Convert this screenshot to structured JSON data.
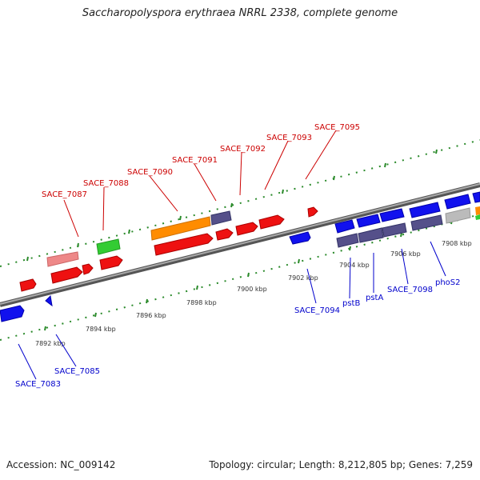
{
  "title": "Saccharopolyspora erythraea NRRL 2338, complete genome",
  "footer": {
    "accession": "Accession: NC_009142",
    "summary": "Topology: circular; Length: 8,212,805 bp; Genes: 7,259"
  },
  "colors": {
    "backbone": "#888888",
    "tick_green": "#2a8a2a",
    "forward_red": "#ee1111",
    "reverse_blue": "#1111ee",
    "slate": "#55508a",
    "orange": "#ff8c00",
    "green": "#33cc33",
    "pink": "#ee8888",
    "grey": "#bbbbbb",
    "label_red": "#cc0000",
    "label_blue": "#0000cc"
  },
  "scale_labels": [
    "7892 kbp",
    "7894 kbp",
    "7896 kbp",
    "7898 kbp",
    "7900 kbp",
    "7902 kbp",
    "7904 kbp",
    "7906 kbp",
    "7908 kbp"
  ],
  "top_gene_labels": [
    "SACE_7087",
    "SACE_7088",
    "SACE_7090",
    "SACE_7091",
    "SACE_7092",
    "SACE_7093",
    "SACE_7095"
  ],
  "bottom_gene_labels": [
    "SACE_7083",
    "SACE_7085",
    "SACE_7094",
    "pstB",
    "pstA",
    "SACE_7098",
    "phoS2"
  ]
}
